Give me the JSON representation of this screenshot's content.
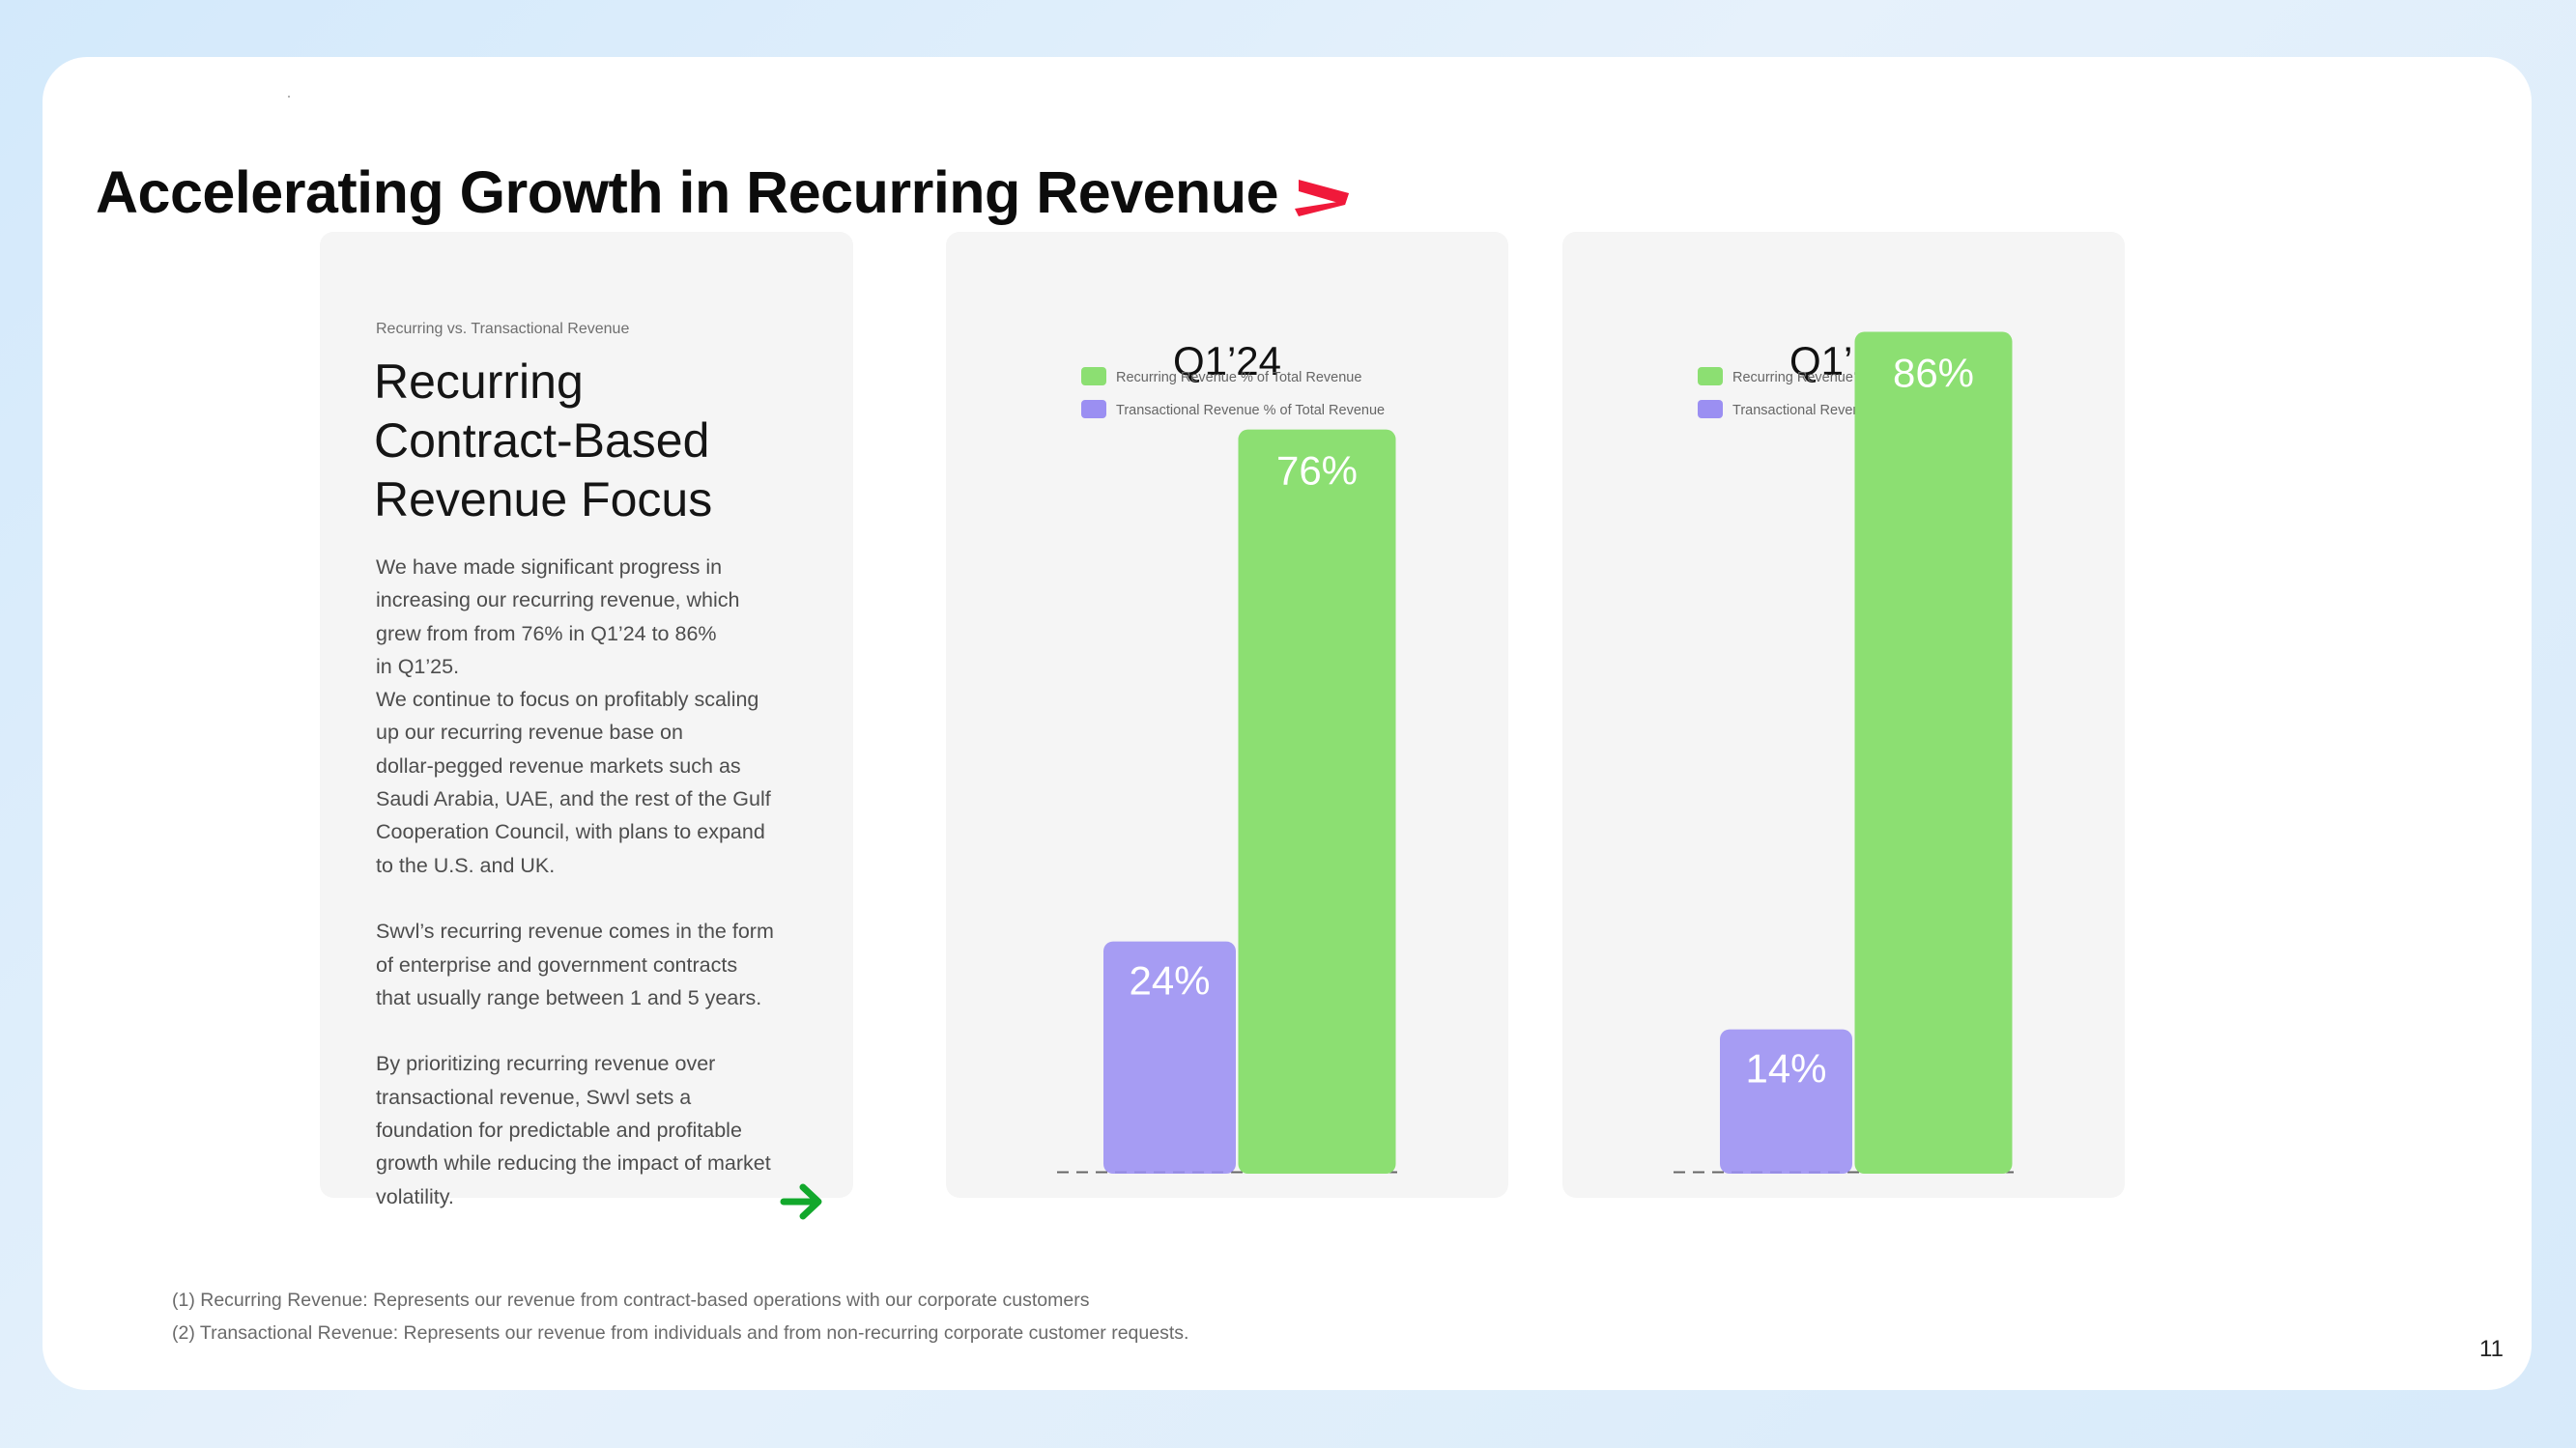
{
  "slide": {
    "title": "Accelerating Growth in Recurring Revenue",
    "page_number": "11",
    "brand_color": "#f0193a",
    "background_color": "#ffffff"
  },
  "text_panel": {
    "eyebrow": "Recurring vs. Transactional Revenue",
    "heading_lines": [
      "Recurring",
      "Contract-Based",
      "Revenue Focus"
    ],
    "body_lines": [
      "We have made significant progress in",
      "increasing our recurring revenue, which",
      "grew from from 76% in Q1’24 to 86%",
      "in Q1’25.",
      "We continue to focus on profitably scaling",
      "up our recurring revenue base on",
      "dollar-pegged revenue markets such as",
      "Saudi Arabia, UAE,  and the rest of the Gulf",
      "Cooperation Council, with plans to expand",
      "to the U.S. and UK.",
      "",
      "Swvl’s recurring revenue comes in the form",
      "of enterprise and government contracts",
      "that usually range between 1 and 5 years.",
      "",
      "By prioritizing recurring revenue over",
      "transactional revenue, Swvl sets a",
      "foundation for predictable and profitable",
      "growth while reducing the impact of market",
      "volatility."
    ],
    "arrow_icon": "arrow-right-icon",
    "arrow_color": "#12a82c"
  },
  "footnotes": [
    "(1) Recurring Revenue: Represents our revenue from contract-based operations with our corporate customers",
    "(2) Transactional Revenue: Represents our revenue from individuals and from non-recurring corporate customer requests."
  ],
  "chart_data": [
    {
      "type": "bar",
      "title": "Q1’24",
      "series": [
        {
          "name": "Recurring Revenue % of Total Revenue",
          "values": [
            76
          ],
          "label": "76%",
          "color": "#8cdf72"
        },
        {
          "name": "Transactional Revenue % of Total Revenue",
          "values": [
            24
          ],
          "label": "24%",
          "color": "#9b8ff2"
        }
      ],
      "unit": "%",
      "ylim": [
        0,
        100
      ],
      "grid": false,
      "legend_position": "top"
    },
    {
      "type": "bar",
      "title": "Q1’25",
      "series": [
        {
          "name": "Recurring Revenue % of Total Revenue",
          "values": [
            86
          ],
          "label": "86%",
          "color": "#8cdf72"
        },
        {
          "name": "Transactional Revenue % of Total Revenue",
          "values": [
            14
          ],
          "label": "14%",
          "color": "#9b8ff2"
        }
      ],
      "unit": "%",
      "ylim": [
        0,
        100
      ],
      "grid": false,
      "legend_position": "top"
    }
  ]
}
